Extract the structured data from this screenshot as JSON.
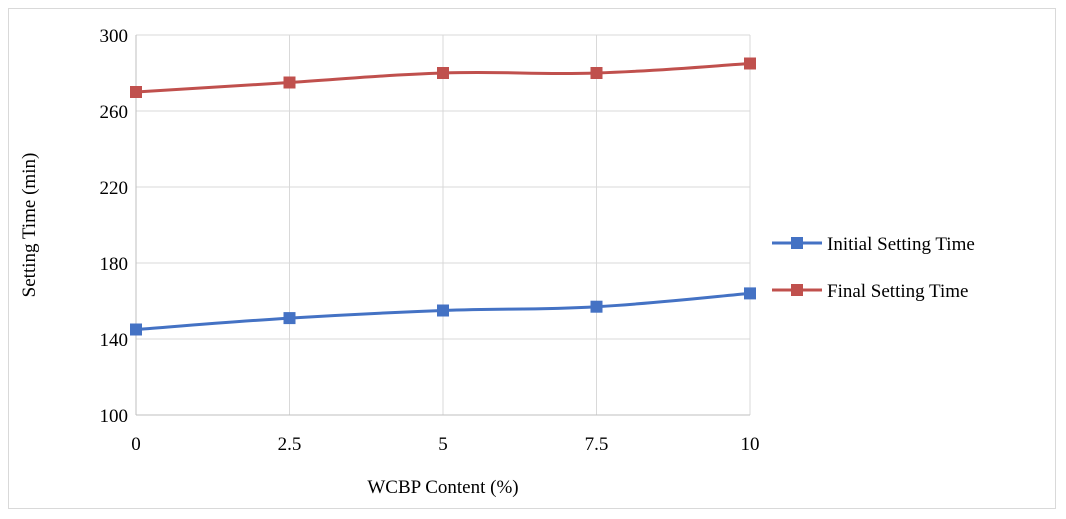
{
  "chart_data": {
    "type": "line",
    "x": [
      0,
      2.5,
      5,
      7.5,
      10
    ],
    "x_tick_labels": [
      "0",
      "2.5",
      "5",
      "7.5",
      "10"
    ],
    "y_tick_labels": [
      "100",
      "140",
      "180",
      "220",
      "260",
      "300"
    ],
    "y_ticks": [
      100,
      140,
      180,
      220,
      260,
      300
    ],
    "xlim": [
      0,
      10
    ],
    "ylim": [
      100,
      300
    ],
    "xlabel": "WCBP Content (%)",
    "ylabel": "Setting Time (min)",
    "grid": true,
    "legend_position": "right",
    "series": [
      {
        "name": "Initial Setting Time",
        "color": "#4472c4",
        "marker": "square",
        "values": [
          145,
          151,
          155,
          157,
          164
        ]
      },
      {
        "name": "Final Setting Time",
        "color": "#c0504d",
        "marker": "square",
        "values": [
          270,
          275,
          280,
          280,
          285
        ]
      }
    ]
  }
}
